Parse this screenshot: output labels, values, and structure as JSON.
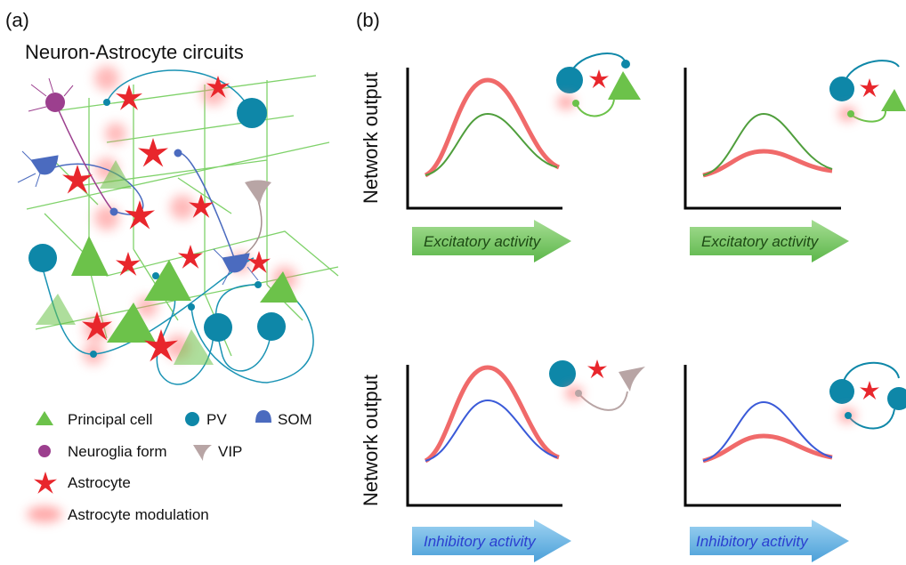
{
  "panel_a": {
    "label": "(a)",
    "title": "Neuron-Astrocyte circuits",
    "legend": [
      {
        "label": "Principal cell"
      },
      {
        "label": "PV"
      },
      {
        "label": "SOM"
      },
      {
        "label": "Neuroglia form"
      },
      {
        "label": "VIP"
      },
      {
        "label": "Astrocyte"
      },
      {
        "label": "Astrocyte modulation"
      }
    ]
  },
  "panel_b": {
    "label": "(b)",
    "plots": [
      {
        "y_label": "Network output",
        "x_label": "Excitatory activity"
      },
      {
        "x_label": "Excitatory activity"
      },
      {
        "y_label": "Network output",
        "x_label": "Inhibitory activity"
      },
      {
        "x_label": "Inhibitory activity"
      }
    ]
  }
}
